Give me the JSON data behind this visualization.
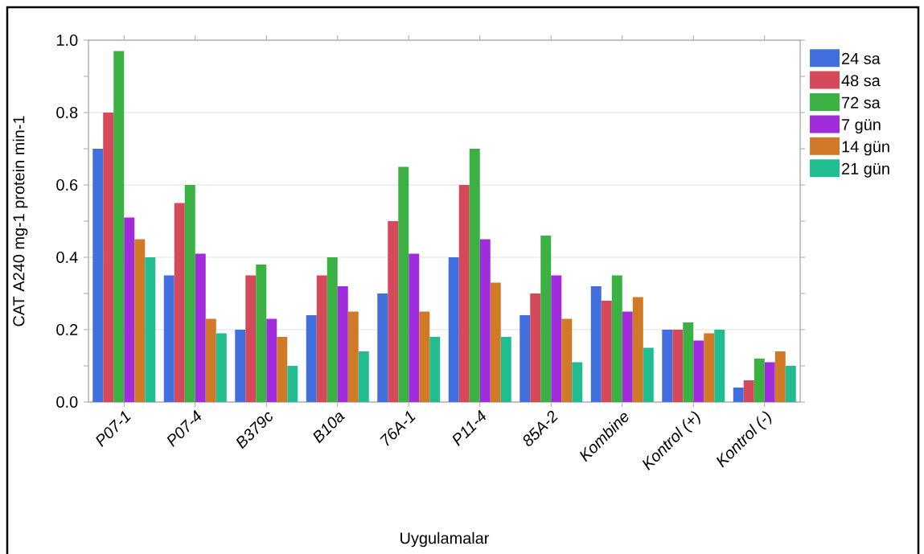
{
  "chart_data": {
    "type": "bar",
    "xlabel": "Uygulamalar",
    "ylabel": "CAT A240 mg-1 protein min-1",
    "categories": [
      "P07-1",
      "P07-4",
      "B379c",
      "B10a",
      "76A-1",
      "P11-4",
      "85A-2",
      "Kombine",
      "Kontrol (+)",
      "Kontrol (-)"
    ],
    "series": [
      {
        "name": "24 sa",
        "color": "#4170de",
        "values": [
          0.7,
          0.35,
          0.2,
          0.24,
          0.3,
          0.4,
          0.24,
          0.32,
          0.2,
          0.04
        ]
      },
      {
        "name": "48 sa",
        "color": "#d44a5a",
        "values": [
          0.8,
          0.55,
          0.35,
          0.35,
          0.5,
          0.6,
          0.3,
          0.28,
          0.2,
          0.06
        ]
      },
      {
        "name": "72 sa",
        "color": "#3bb143",
        "values": [
          0.97,
          0.6,
          0.38,
          0.4,
          0.65,
          0.7,
          0.46,
          0.35,
          0.22,
          0.12
        ]
      },
      {
        "name": "7 gün",
        "color": "#a12cdb",
        "values": [
          0.51,
          0.41,
          0.23,
          0.32,
          0.41,
          0.45,
          0.35,
          0.25,
          0.17,
          0.11
        ]
      },
      {
        "name": "14 gün",
        "color": "#d07a27",
        "values": [
          0.45,
          0.23,
          0.18,
          0.25,
          0.25,
          0.33,
          0.23,
          0.29,
          0.19,
          0.14
        ]
      },
      {
        "name": "21 gün",
        "color": "#21bd91",
        "values": [
          0.4,
          0.19,
          0.1,
          0.14,
          0.18,
          0.18,
          0.11,
          0.15,
          0.2,
          0.1
        ]
      }
    ],
    "ylim": [
      0,
      1.0
    ],
    "yticks": [
      {
        "value": 0,
        "label": "0.0"
      },
      {
        "value": 0.2,
        "label": "0.2"
      },
      {
        "value": 0.4,
        "label": "0.4"
      },
      {
        "value": 0.6,
        "label": "0.6"
      },
      {
        "value": 0.8,
        "label": "0.8"
      },
      {
        "value": 1.0,
        "label": "1.0"
      }
    ],
    "grid": "y",
    "legend": "right"
  }
}
